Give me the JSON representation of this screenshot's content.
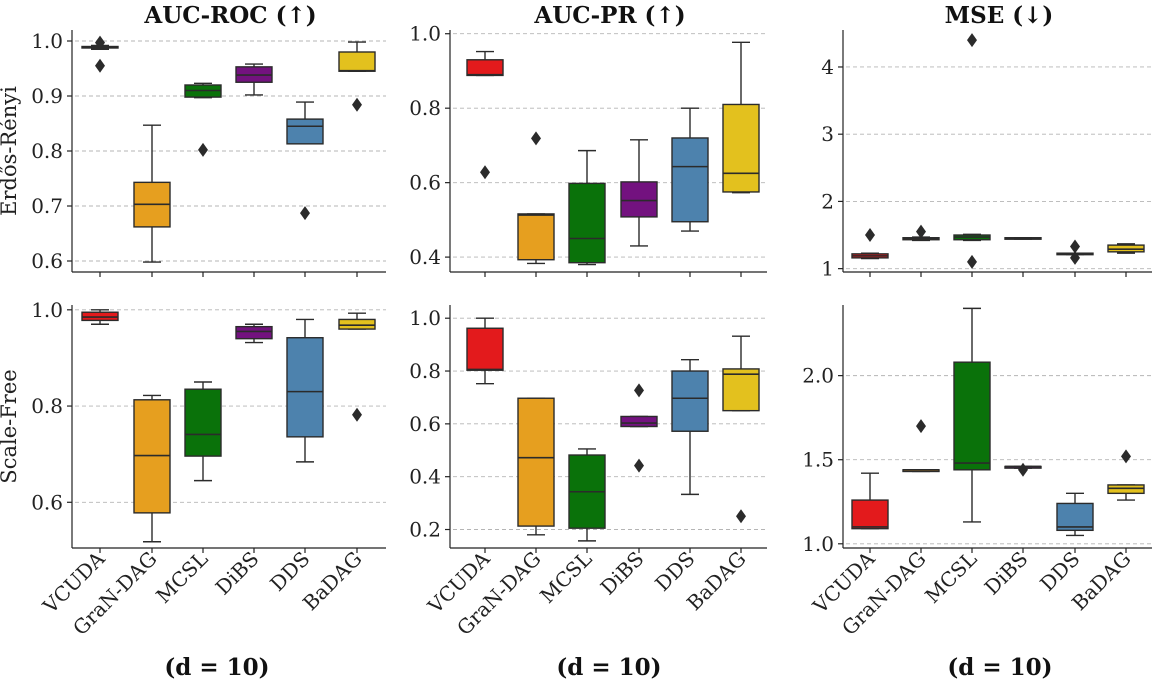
{
  "chart_data": [
    {
      "type": "box",
      "row": 0,
      "col": 0,
      "title": "AUC-ROC (↑)",
      "ylabel": "Erdős-Rényi",
      "ylim": [
        0.58,
        1.02
      ],
      "yticks": [
        0.6,
        0.7,
        0.8,
        0.9,
        1.0
      ],
      "yticklabels": [
        "0.6",
        "0.7",
        "0.8",
        "0.9",
        "1.0"
      ],
      "categories": [
        "VCUDA",
        "GraN-DAG",
        "MCSL",
        "DiBS",
        "DDS",
        "BaDAG"
      ],
      "boxes": [
        {
          "name": "VCUDA",
          "whislo": 0.985,
          "q1": 0.988,
          "med": 0.989,
          "q3": 0.99,
          "whishi": 0.992,
          "fliers": [
            0.997,
            0.955
          ]
        },
        {
          "name": "GraN-DAG",
          "whislo": 0.598,
          "q1": 0.662,
          "med": 0.703,
          "q3": 0.743,
          "whishi": 0.847,
          "fliers": []
        },
        {
          "name": "MCSL",
          "whislo": 0.897,
          "q1": 0.898,
          "med": 0.91,
          "q3": 0.92,
          "whishi": 0.923,
          "fliers": [
            0.802
          ]
        },
        {
          "name": "DiBS",
          "whislo": 0.902,
          "q1": 0.925,
          "med": 0.938,
          "q3": 0.953,
          "whishi": 0.958,
          "fliers": []
        },
        {
          "name": "DDS",
          "whislo": 0.813,
          "q1": 0.813,
          "med": 0.845,
          "q3": 0.858,
          "whishi": 0.889,
          "fliers": [
            0.687
          ]
        },
        {
          "name": "BaDAG",
          "whislo": 0.945,
          "q1": 0.945,
          "med": 0.946,
          "q3": 0.98,
          "whishi": 0.998,
          "fliers": [
            0.884
          ]
        }
      ]
    },
    {
      "type": "box",
      "row": 0,
      "col": 1,
      "title": "AUC-PR (↑)",
      "ylabel": "",
      "ylim": [
        0.36,
        1.01
      ],
      "yticks": [
        0.4,
        0.6,
        0.8,
        1.0
      ],
      "yticklabels": [
        "0.4",
        "0.6",
        "0.8",
        "1.0"
      ],
      "categories": [
        "VCUDA",
        "GraN-DAG",
        "MCSL",
        "DiBS",
        "DDS",
        "BaDAG"
      ],
      "boxes": [
        {
          "name": "VCUDA",
          "whislo": 0.888,
          "q1": 0.888,
          "med": 0.89,
          "q3": 0.93,
          "whishi": 0.952,
          "fliers": [
            0.628
          ]
        },
        {
          "name": "GraN-DAG",
          "whislo": 0.383,
          "q1": 0.393,
          "med": 0.513,
          "q3": 0.516,
          "whishi": 0.516,
          "fliers": [
            0.719
          ]
        },
        {
          "name": "MCSL",
          "whislo": 0.38,
          "q1": 0.385,
          "med": 0.45,
          "q3": 0.598,
          "whishi": 0.686,
          "fliers": []
        },
        {
          "name": "DiBS",
          "whislo": 0.43,
          "q1": 0.508,
          "med": 0.552,
          "q3": 0.602,
          "whishi": 0.715,
          "fliers": []
        },
        {
          "name": "DDS",
          "whislo": 0.47,
          "q1": 0.495,
          "med": 0.643,
          "q3": 0.72,
          "whishi": 0.8,
          "fliers": []
        },
        {
          "name": "BaDAG",
          "whislo": 0.573,
          "q1": 0.575,
          "med": 0.625,
          "q3": 0.81,
          "whishi": 0.977,
          "fliers": []
        }
      ]
    },
    {
      "type": "box",
      "row": 0,
      "col": 2,
      "title": "MSE (↓)",
      "ylabel": "",
      "ylim": [
        0.95,
        4.55
      ],
      "yticks": [
        1,
        2,
        3,
        4
      ],
      "yticklabels": [
        "1",
        "2",
        "3",
        "4"
      ],
      "categories": [
        "VCUDA",
        "GraN-DAG",
        "MCSL",
        "DiBS",
        "DDS",
        "BaDAG"
      ],
      "boxes": [
        {
          "name": "VCUDA",
          "whislo": 1.15,
          "q1": 1.16,
          "med": 1.19,
          "q3": 1.22,
          "whishi": 1.23,
          "fliers": [
            1.5
          ]
        },
        {
          "name": "GraN-DAG",
          "whislo": 1.42,
          "q1": 1.43,
          "med": 1.45,
          "q3": 1.46,
          "whishi": 1.47,
          "fliers": [
            1.55
          ]
        },
        {
          "name": "MCSL",
          "whislo": 1.42,
          "q1": 1.43,
          "med": 1.47,
          "q3": 1.5,
          "whishi": 1.51,
          "fliers": [
            4.4,
            1.1
          ]
        },
        {
          "name": "DiBS",
          "whislo": 1.44,
          "q1": 1.44,
          "med": 1.45,
          "q3": 1.46,
          "whishi": 1.46,
          "fliers": []
        },
        {
          "name": "DDS",
          "whislo": 1.21,
          "q1": 1.21,
          "med": 1.22,
          "q3": 1.23,
          "whishi": 1.23,
          "fliers": [
            1.33,
            1.16
          ]
        },
        {
          "name": "BaDAG",
          "whislo": 1.23,
          "q1": 1.25,
          "med": 1.29,
          "q3": 1.35,
          "whishi": 1.37,
          "fliers": []
        }
      ]
    },
    {
      "type": "box",
      "row": 1,
      "col": 0,
      "title": "",
      "ylabel": "Scale-Free",
      "ylim": [
        0.505,
        1.01
      ],
      "yticks": [
        0.6,
        0.8,
        1.0
      ],
      "yticklabels": [
        "0.6",
        "0.8",
        "1.0"
      ],
      "categories": [
        "VCUDA",
        "GraN-DAG",
        "MCSL",
        "DiBS",
        "DDS",
        "BaDAG"
      ],
      "boxes": [
        {
          "name": "VCUDA",
          "whislo": 0.97,
          "q1": 0.978,
          "med": 0.985,
          "q3": 0.995,
          "whishi": 1.0,
          "fliers": []
        },
        {
          "name": "GraN-DAG",
          "whislo": 0.518,
          "q1": 0.578,
          "med": 0.697,
          "q3": 0.813,
          "whishi": 0.822,
          "fliers": []
        },
        {
          "name": "MCSL",
          "whislo": 0.645,
          "q1": 0.696,
          "med": 0.741,
          "q3": 0.835,
          "whishi": 0.85,
          "fliers": []
        },
        {
          "name": "DiBS",
          "whislo": 0.932,
          "q1": 0.94,
          "med": 0.955,
          "q3": 0.965,
          "whishi": 0.97,
          "fliers": []
        },
        {
          "name": "DDS",
          "whislo": 0.684,
          "q1": 0.736,
          "med": 0.83,
          "q3": 0.942,
          "whishi": 0.98,
          "fliers": []
        },
        {
          "name": "BaDAG",
          "whislo": 0.96,
          "q1": 0.96,
          "med": 0.968,
          "q3": 0.98,
          "whishi": 0.993,
          "fliers": [
            0.782
          ]
        }
      ]
    },
    {
      "type": "box",
      "row": 1,
      "col": 1,
      "title": "",
      "ylabel": "",
      "ylim": [
        0.13,
        1.05
      ],
      "yticks": [
        0.2,
        0.4,
        0.6,
        0.8,
        1.0
      ],
      "yticklabels": [
        "0.2",
        "0.4",
        "0.6",
        "0.8",
        "1.0"
      ],
      "categories": [
        "VCUDA",
        "GraN-DAG",
        "MCSL",
        "DiBS",
        "DDS",
        "BaDAG"
      ],
      "boxes": [
        {
          "name": "VCUDA",
          "whislo": 0.752,
          "q1": 0.803,
          "med": 0.806,
          "q3": 0.962,
          "whishi": 1.0,
          "fliers": []
        },
        {
          "name": "GraN-DAG",
          "whislo": 0.18,
          "q1": 0.213,
          "med": 0.472,
          "q3": 0.697,
          "whishi": 0.697,
          "fliers": []
        },
        {
          "name": "MCSL",
          "whislo": 0.157,
          "q1": 0.205,
          "med": 0.343,
          "q3": 0.482,
          "whishi": 0.505,
          "fliers": []
        },
        {
          "name": "DiBS",
          "whislo": 0.59,
          "q1": 0.59,
          "med": 0.603,
          "q3": 0.628,
          "whishi": 0.628,
          "fliers": [
            0.727,
            0.442
          ]
        },
        {
          "name": "DDS",
          "whislo": 0.333,
          "q1": 0.572,
          "med": 0.697,
          "q3": 0.8,
          "whishi": 0.843,
          "fliers": []
        },
        {
          "name": "BaDAG",
          "whislo": 0.65,
          "q1": 0.65,
          "med": 0.788,
          "q3": 0.808,
          "whishi": 0.932,
          "fliers": [
            0.25
          ]
        }
      ]
    },
    {
      "type": "box",
      "row": 1,
      "col": 2,
      "title": "",
      "ylabel": "",
      "ylim": [
        0.975,
        2.42
      ],
      "yticks": [
        1.0,
        1.5,
        2.0
      ],
      "yticklabels": [
        "1.0",
        "1.5",
        "2.0"
      ],
      "categories": [
        "VCUDA",
        "GraN-DAG",
        "MCSL",
        "DiBS",
        "DDS",
        "BaDAG"
      ],
      "boxes": [
        {
          "name": "VCUDA",
          "whislo": 1.09,
          "q1": 1.09,
          "med": 1.1,
          "q3": 1.26,
          "whishi": 1.42,
          "fliers": []
        },
        {
          "name": "GraN-DAG",
          "whislo": 1.43,
          "q1": 1.43,
          "med": 1.44,
          "q3": 1.44,
          "whishi": 1.44,
          "fliers": [
            1.7
          ]
        },
        {
          "name": "MCSL",
          "whislo": 1.13,
          "q1": 1.44,
          "med": 1.48,
          "q3": 2.08,
          "whishi": 2.4,
          "fliers": []
        },
        {
          "name": "DiBS",
          "whislo": 1.45,
          "q1": 1.45,
          "med": 1.46,
          "q3": 1.46,
          "whishi": 1.46,
          "fliers": [
            1.44
          ]
        },
        {
          "name": "DDS",
          "whislo": 1.05,
          "q1": 1.08,
          "med": 1.1,
          "q3": 1.24,
          "whishi": 1.3,
          "fliers": []
        },
        {
          "name": "BaDAG",
          "whislo": 1.26,
          "q1": 1.3,
          "med": 1.33,
          "q3": 1.35,
          "whishi": 1.35,
          "fliers": [
            1.52
          ]
        }
      ]
    }
  ],
  "colors": {
    "VCUDA": "#e31a1c",
    "GraN-DAG": "#e69f1f",
    "MCSL": "#0a720a",
    "DiBS": "#73127f",
    "DDS": "#4d82ad",
    "BaDAG": "#e3c11e"
  },
  "footer": [
    "(d = 10)",
    "(d = 10)",
    "(d = 10)"
  ]
}
